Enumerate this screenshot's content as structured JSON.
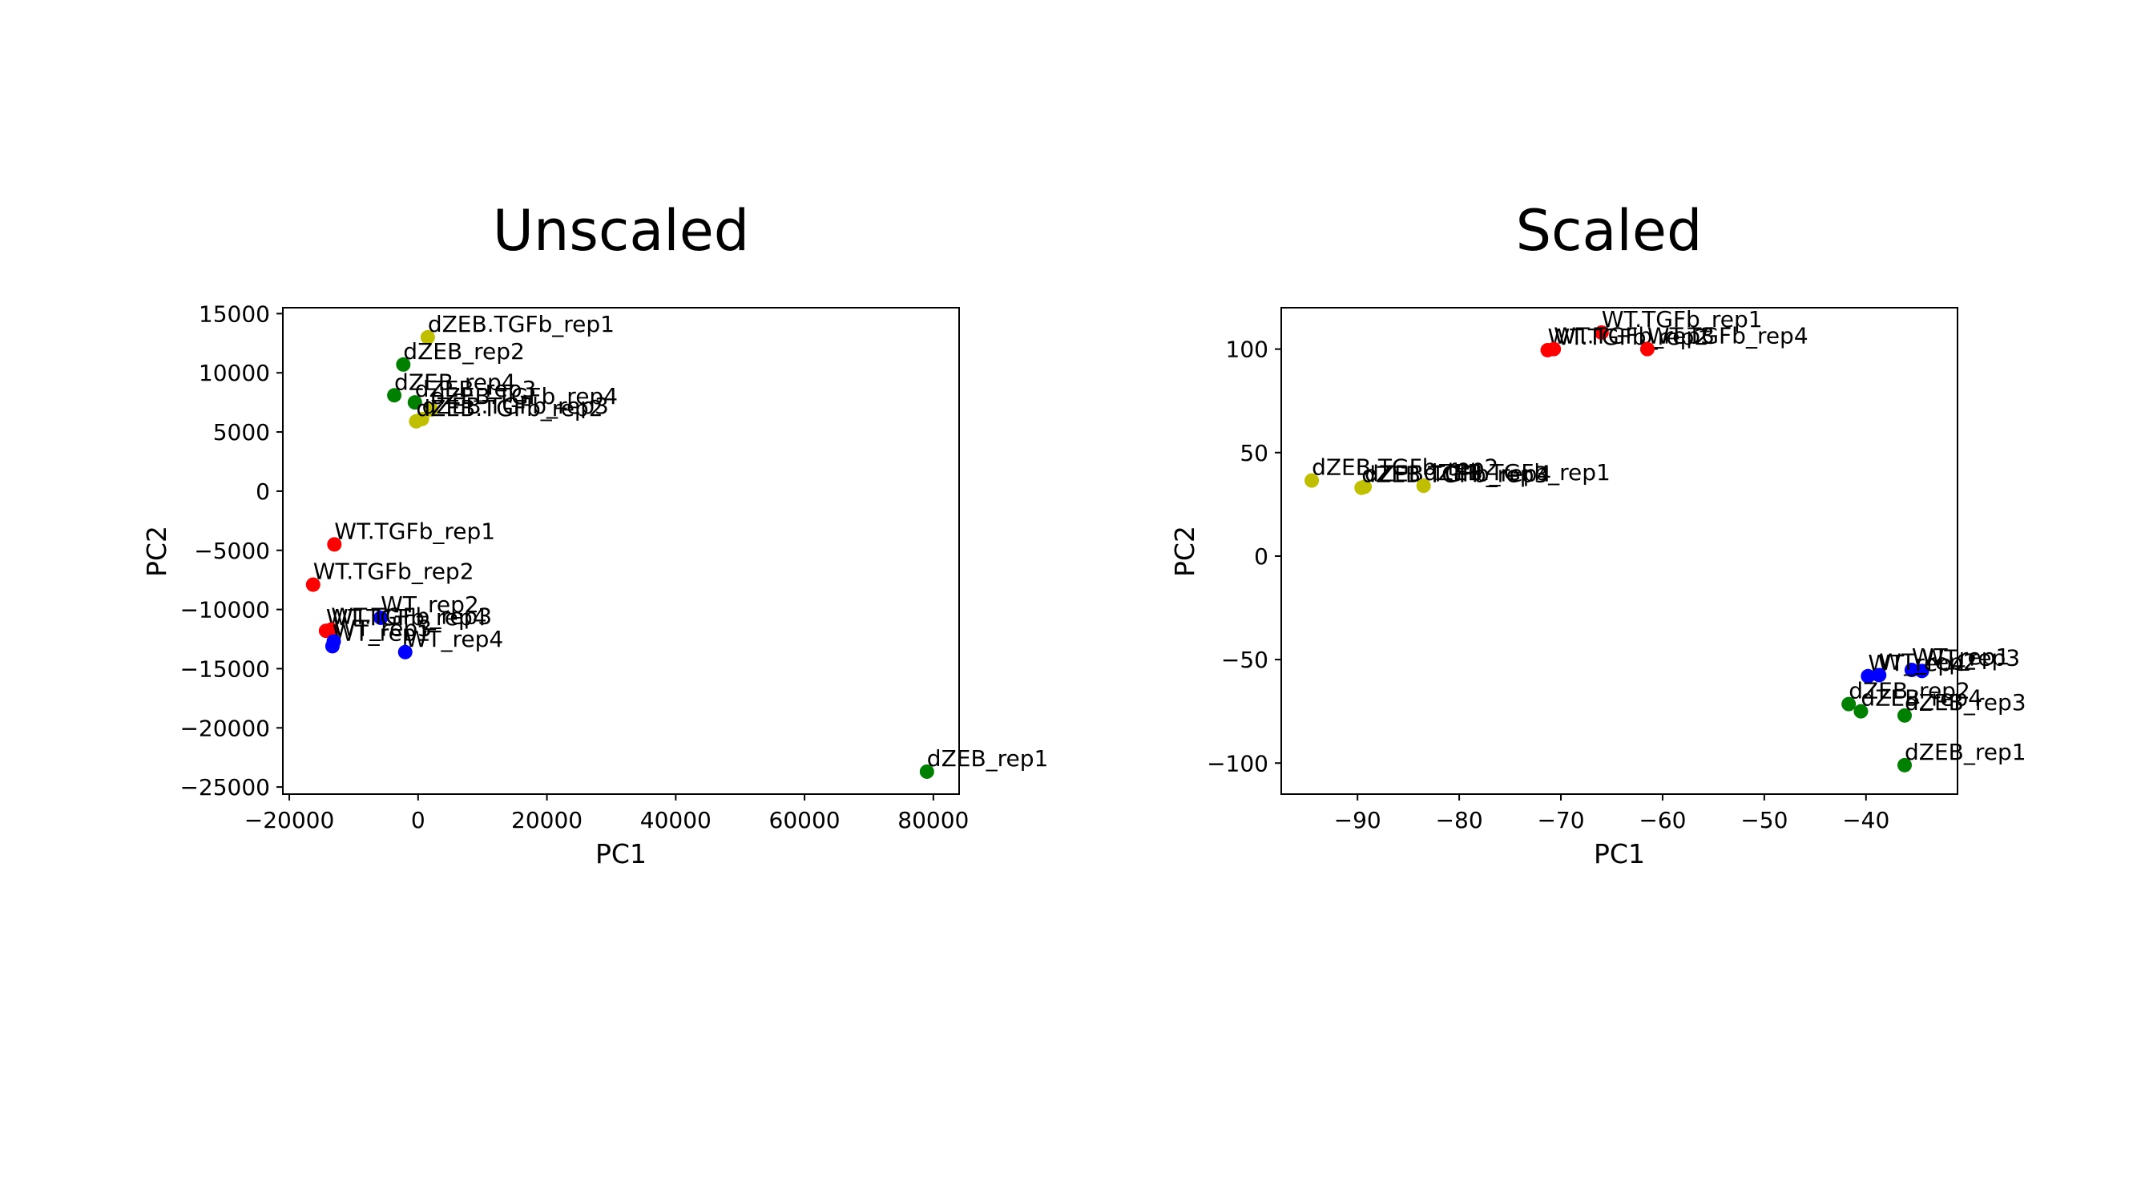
{
  "chart_data": [
    {
      "type": "scatter",
      "title": "Unscaled",
      "xlabel": "PC1",
      "ylabel": "PC2",
      "xlim": [
        -21000,
        84000
      ],
      "ylim": [
        -25600,
        15500
      ],
      "xticks": [
        -20000,
        0,
        20000,
        40000,
        60000,
        80000
      ],
      "xtick_labels": [
        "−20000",
        "0",
        "20000",
        "40000",
        "60000",
        "80000"
      ],
      "yticks": [
        15000,
        10000,
        5000,
        0,
        -5000,
        -10000,
        -15000,
        -20000,
        -25000
      ],
      "ytick_labels": [
        "15000",
        "10000",
        "5000",
        "0",
        "−5000",
        "−10000",
        "−15000",
        "−20000",
        "−25000"
      ],
      "points": [
        {
          "label": "dZEB.TGFb_rep1",
          "x": 1500,
          "y": 13000,
          "color": "#bfbf00"
        },
        {
          "label": "dZEB_rep2",
          "x": -2300,
          "y": 10700,
          "color": "#008000"
        },
        {
          "label": "dZEB_rep4",
          "x": -3700,
          "y": 8100,
          "color": "#008000"
        },
        {
          "label": "dZEB_rep3",
          "x": -500,
          "y": 7500,
          "color": "#008000"
        },
        {
          "label": "dZEB.TGFb_rep4",
          "x": 2000,
          "y": 6900,
          "color": "#bfbf00"
        },
        {
          "label": "dZEB.TGFb_rep3",
          "x": 600,
          "y": 6100,
          "color": "#bfbf00"
        },
        {
          "label": "dZEB.TGFb_rep2",
          "x": -300,
          "y": 5900,
          "color": "#bfbf00"
        },
        {
          "label": "WT.TGFb_rep1",
          "x": -13000,
          "y": -4500,
          "color": "#ff0000"
        },
        {
          "label": "WT.TGFb_rep2",
          "x": -16300,
          "y": -7900,
          "color": "#ff0000"
        },
        {
          "label": "WT_rep2",
          "x": -5800,
          "y": -10700,
          "color": "#0000ff"
        },
        {
          "label": "WT.TGFb_rep4",
          "x": -14300,
          "y": -11800,
          "color": "#ff0000"
        },
        {
          "label": "WT.TGFb_rep3",
          "x": -13500,
          "y": -11700,
          "color": "#ff0000"
        },
        {
          "label": "WT_rep1",
          "x": -13300,
          "y": -13100,
          "color": "#0000ff"
        },
        {
          "label": "WT_rep3",
          "x": -13100,
          "y": -12700,
          "color": "#0000ff"
        },
        {
          "label": "WT_rep4",
          "x": -2000,
          "y": -13600,
          "color": "#0000ff"
        },
        {
          "label": "dZEB_rep1",
          "x": 79000,
          "y": -23700,
          "color": "#008000"
        }
      ]
    },
    {
      "type": "scatter",
      "title": "Scaled",
      "xlabel": "PC1",
      "ylabel": "PC2",
      "xlim": [
        -97.5,
        -31
      ],
      "ylim": [
        -115,
        120
      ],
      "xticks": [
        -90,
        -80,
        -70,
        -60,
        -50,
        -40
      ],
      "xtick_labels": [
        "−90",
        "−80",
        "−70",
        "−60",
        "−50",
        "−40"
      ],
      "yticks": [
        100,
        50,
        0,
        -50,
        -100
      ],
      "ytick_labels": [
        "100",
        "50",
        "0",
        "−50",
        "−100"
      ],
      "points": [
        {
          "label": "WT.TGFb_rep1",
          "x": -66,
          "y": 108,
          "color": "#ff0000"
        },
        {
          "label": "WT.TGFb_rep2",
          "x": -71.3,
          "y": 99.5,
          "color": "#ff0000"
        },
        {
          "label": "WT.TGFb_rep3",
          "x": -70.7,
          "y": 100,
          "color": "#ff0000"
        },
        {
          "label": "WT.TGFb_rep4",
          "x": -61.5,
          "y": 100,
          "color": "#ff0000"
        },
        {
          "label": "dZEB.TGFb_rep2",
          "x": -94.5,
          "y": 36.5,
          "color": "#bfbf00"
        },
        {
          "label": "dZEB.TGFb_rep4",
          "x": -89.3,
          "y": 33.5,
          "color": "#bfbf00"
        },
        {
          "label": "dZEB.TGFb_rep3",
          "x": -89.6,
          "y": 33,
          "color": "#bfbf00"
        },
        {
          "label": "dZEB.TGFb_rep1",
          "x": -83.5,
          "y": 34,
          "color": "#bfbf00"
        },
        {
          "label": "WT_rep1",
          "x": -35.5,
          "y": -55,
          "color": "#0000ff"
        },
        {
          "label": "WT_rep3",
          "x": -34.5,
          "y": -55.5,
          "color": "#0000ff"
        },
        {
          "label": "WT_rep4",
          "x": -39.8,
          "y": -58,
          "color": "#0000ff"
        },
        {
          "label": "WT_rep2",
          "x": -38.7,
          "y": -57.5,
          "color": "#0000ff"
        },
        {
          "label": "dZEB_rep2",
          "x": -41.7,
          "y": -71.5,
          "color": "#008000"
        },
        {
          "label": "dZEB_rep4",
          "x": -40.5,
          "y": -75,
          "color": "#008000"
        },
        {
          "label": "dZEB_rep3",
          "x": -36.2,
          "y": -77,
          "color": "#008000"
        },
        {
          "label": "dZEB_rep1",
          "x": -36.2,
          "y": -101,
          "color": "#008000"
        }
      ]
    }
  ]
}
